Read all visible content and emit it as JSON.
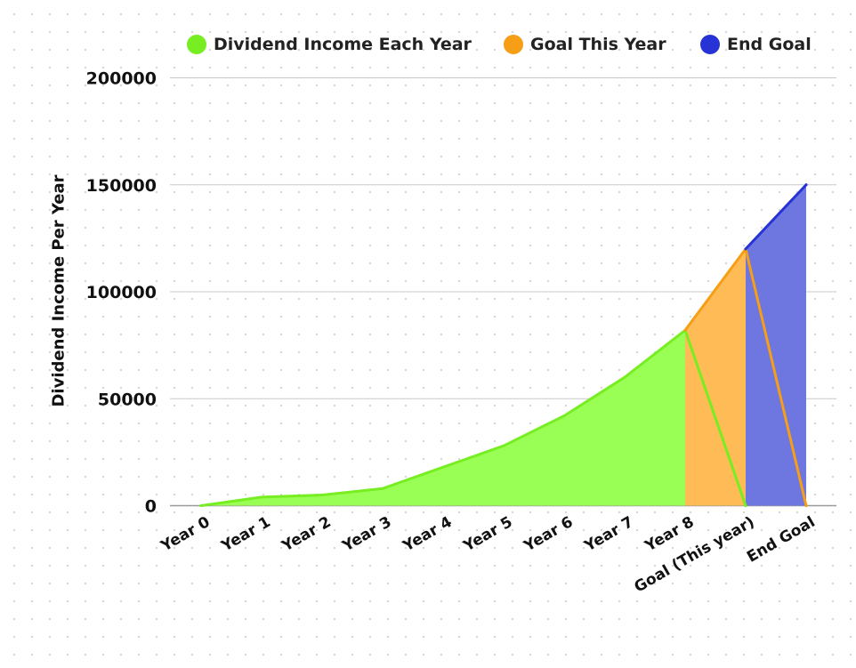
{
  "chart_data": {
    "type": "area",
    "title": "",
    "xlabel": "",
    "ylabel": "Dividend Income Per Year",
    "categories": [
      "Year 0",
      "Year 1",
      "Year 2",
      "Year 3",
      "Year 4",
      "Year 5",
      "Year 6",
      "Year 7",
      "Year 8",
      "Goal (This year)",
      "End Goal"
    ],
    "ylim": [
      0,
      200000
    ],
    "yticks": [
      "0",
      "50000",
      "100000",
      "150000",
      "200000"
    ],
    "grid": "horizontal",
    "legend_position": "top",
    "series": [
      {
        "name": "Dividend Income Each Year",
        "color": "#77ee22",
        "fill": "#99ff55",
        "values": [
          0,
          4000,
          5000,
          8000,
          18000,
          28000,
          42000,
          60000,
          82000,
          0,
          null
        ]
      },
      {
        "name": "Goal This Year",
        "color": "#f59e16",
        "fill": "#ffbb55",
        "values": [
          null,
          null,
          null,
          null,
          null,
          null,
          null,
          null,
          82000,
          120000,
          0
        ]
      },
      {
        "name": "End Goal",
        "color": "#2833d6",
        "fill": "#6e76e0",
        "values": [
          null,
          null,
          null,
          null,
          null,
          null,
          null,
          null,
          null,
          120000,
          150000
        ]
      }
    ]
  }
}
